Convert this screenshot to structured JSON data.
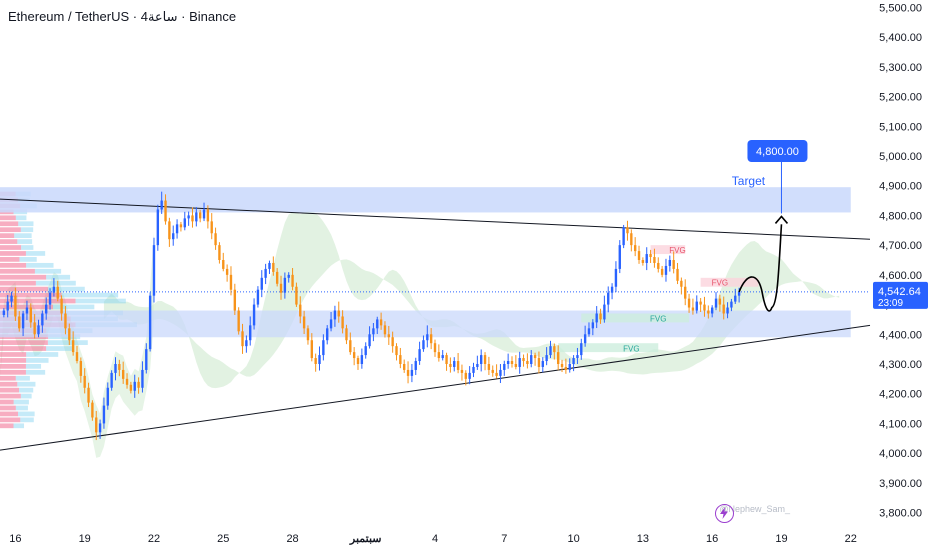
{
  "header": {
    "pair": "Ethereum / TetherUS",
    "sep1": " · ",
    "interval": "4ساعة",
    "sep2": " · ",
    "exchange": "Binance"
  },
  "price_box": {
    "price": "4,542.64",
    "countdown": "23:09"
  },
  "target_box": {
    "price": "4,800.00",
    "label": "Target"
  },
  "fvg_labels": [
    "FVG",
    "FVG",
    "FVG",
    "FVG"
  ],
  "watermark": "@Nephew_Sam_",
  "logo_icon": "lightning-icon",
  "colors": {
    "up": "#2962ff",
    "down": "#f7931a",
    "accent": "#2962ff",
    "zone": "#c9d8fb",
    "fvg_red": "#fbd3dc",
    "fvg_green": "#cdeedd",
    "cloud": "#d6ecd5"
  },
  "chart_data": {
    "type": "candlestick",
    "y_ticks": [
      "5,500.00",
      "5,400.00",
      "5,300.00",
      "5,200.00",
      "5,100.00",
      "5,000.00",
      "4,900.00",
      "4,800.00",
      "4,700.00",
      "4,600.00",
      "4,500.00",
      "4,400.00",
      "4,300.00",
      "4,200.00",
      "4,100.00",
      "4,000.00",
      "3,900.00",
      "3,800.00"
    ],
    "y_tick_values": [
      5500,
      5400,
      5300,
      5200,
      5100,
      5000,
      4900,
      4800,
      4700,
      4600,
      4500,
      4400,
      4300,
      4200,
      4100,
      4000,
      3900,
      3800
    ],
    "ylim": [
      3775,
      5525
    ],
    "x_ticks": [
      "16",
      "19",
      "22",
      "25",
      "28",
      "سبتمبر",
      "4",
      "7",
      "10",
      "13",
      "16",
      "19",
      "22"
    ],
    "x_tick_index": [
      3,
      21,
      39,
      57,
      75,
      94,
      112,
      130,
      148,
      166,
      184,
      202,
      220
    ],
    "x_range": [
      -1,
      225
    ],
    "current_price": 4542.64,
    "target_price": 4800,
    "supply_zone": [
      4810,
      4895
    ],
    "demand_zone": [
      4390,
      4480
    ],
    "trendline_upper": [
      {
        "i": -1,
        "y": 4855
      },
      {
        "i": 225,
        "y": 4720
      }
    ],
    "trendline_lower": [
      {
        "i": -1,
        "y": 4010
      },
      {
        "i": 225,
        "y": 4430
      }
    ],
    "candles": {
      "start_index": 0,
      "close": [
        4480,
        4510,
        4530,
        4460,
        4420,
        4470,
        4490,
        4440,
        4400,
        4430,
        4470,
        4500,
        4540,
        4560,
        4520,
        4470,
        4420,
        4380,
        4340,
        4310,
        4260,
        4220,
        4170,
        4120,
        4070,
        4100,
        4160,
        4220,
        4270,
        4300,
        4280,
        4250,
        4230,
        4210,
        4240,
        4220,
        4280,
        4350,
        4530,
        4700,
        4820,
        4850,
        4780,
        4720,
        4740,
        4770,
        4760,
        4790,
        4800,
        4780,
        4810,
        4790,
        4820,
        4780,
        4740,
        4700,
        4650,
        4620,
        4600,
        4550,
        4480,
        4410,
        4360,
        4380,
        4430,
        4500,
        4550,
        4590,
        4620,
        4640,
        4610,
        4570,
        4540,
        4590,
        4600,
        4560,
        4500,
        4460,
        4420,
        4380,
        4320,
        4300,
        4330,
        4380,
        4420,
        4450,
        4480,
        4460,
        4420,
        4380,
        4340,
        4320,
        4300,
        4330,
        4360,
        4400,
        4420,
        4450,
        4430,
        4400,
        4390,
        4360,
        4330,
        4300,
        4280,
        4260,
        4280,
        4310,
        4350,
        4380,
        4400,
        4370,
        4340,
        4320,
        4330,
        4300,
        4290,
        4310,
        4280,
        4270,
        4250,
        4270,
        4290,
        4300,
        4330,
        4300,
        4280,
        4270,
        4260,
        4280,
        4300,
        4310,
        4300,
        4290,
        4320,
        4310,
        4300,
        4330,
        4320,
        4290,
        4310,
        4330,
        4360,
        4340,
        4300,
        4290,
        4280,
        4300,
        4320,
        4330,
        4370,
        4400,
        4420,
        4440,
        4470,
        4450,
        4500,
        4540,
        4560,
        4620,
        4700,
        4760,
        4740,
        4700,
        4680,
        4650,
        4640,
        4670,
        4660,
        4640,
        4620,
        4600,
        4630,
        4650,
        4620,
        4580,
        4560,
        4520,
        4490,
        4480,
        4510,
        4500,
        4480,
        4470,
        4490,
        4520,
        4500,
        4470,
        4490,
        4510,
        4530,
        4542.64
      ]
    },
    "overlays": [
      "Target",
      "FVG",
      "FVG",
      "FVG",
      "FVG"
    ]
  }
}
